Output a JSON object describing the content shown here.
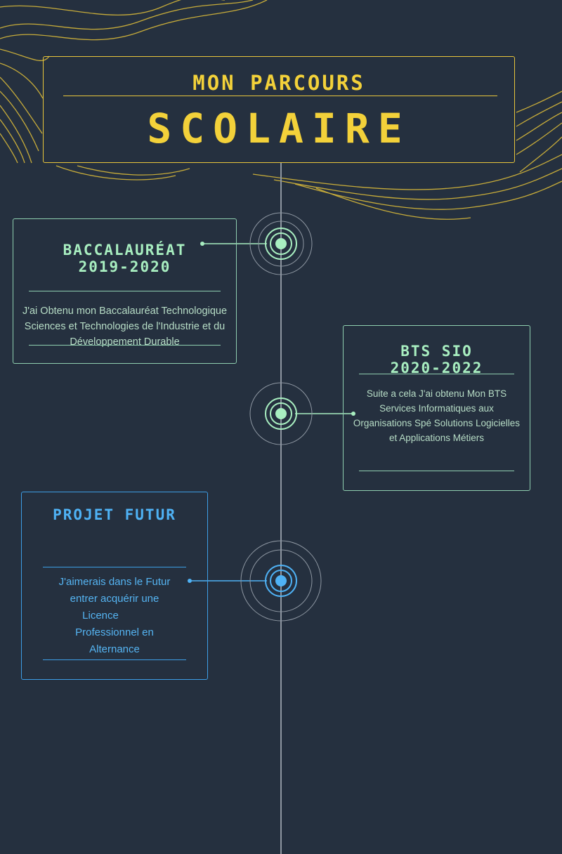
{
  "title": {
    "line1": "MON PARCOURS",
    "line2": "SCOLAIRE"
  },
  "colors": {
    "background": "#25303f",
    "accent_yellow": "#f3d13a",
    "accent_green": "#a8eec0",
    "accent_blue": "#4fb2f5",
    "timeline": "#8e97a2"
  },
  "entries": [
    {
      "heading": "BACCALAURÉAT",
      "period": "2019-2020",
      "description": "J'ai Obtenu mon Baccalauréat Technologique Sciences et Technologies de l'Industrie et du Développement Durable"
    },
    {
      "heading": "BTS SIO",
      "period": "2020-2022",
      "description": "Suite a cela J'ai obtenu Mon BTS Services Informatiques aux Organisations Spé Solutions Logicielles et Applications Métiers"
    },
    {
      "heading": "PROJET FUTUR",
      "description_lines": [
        "J'aimerais dans le Futur",
        "entrer acquérir une",
        "Licence",
        "Professionnel en",
        "Alternance"
      ]
    }
  ]
}
